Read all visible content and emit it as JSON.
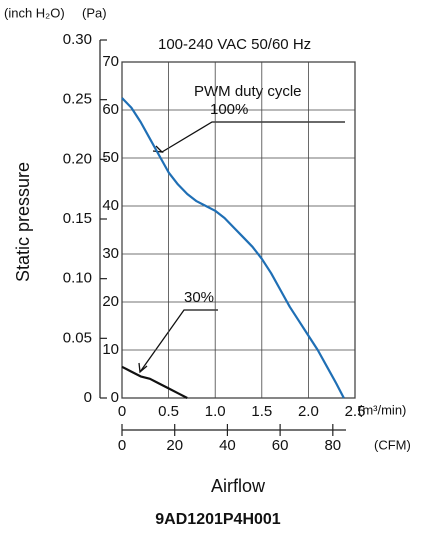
{
  "chart_data": {
    "type": "line",
    "title": "9AD1201P4H001",
    "subtitle": "100-240 VAC  50/60 Hz",
    "annotation": "PWM duty cycle",
    "x_label": "Airflow",
    "y_label": "Static pressure",
    "x_unit": "(m³/min)",
    "x2_unit": "(CFM)",
    "y_unit": "(Pa)",
    "y2_unit": "(inch H₂O)",
    "xlim": [
      0,
      2.5
    ],
    "xticks": [
      0,
      0.5,
      {
        "value": 1,
        "label": "1.0"
      },
      1.5,
      {
        "value": 2,
        "label": "2.0"
      },
      2.5
    ],
    "x2lim": [
      0,
      85
    ],
    "x2ticks": [
      0,
      20,
      40,
      60,
      80
    ],
    "ylim": [
      0,
      70
    ],
    "yticks": [
      0,
      10,
      20,
      30,
      40,
      50,
      60,
      70
    ],
    "y2lim": [
      0,
      0.3
    ],
    "y2ticks": [
      0,
      0.05,
      {
        "value": 0.1,
        "label": "0.10"
      },
      0.15,
      {
        "value": 0.2,
        "label": "0.20"
      },
      0.25,
      {
        "value": 0.3,
        "label": "0.30"
      }
    ],
    "grid": true,
    "series": [
      {
        "name": "100%",
        "color": "#1f6fb5",
        "x": [
          0,
          0.1,
          0.2,
          0.3,
          0.4,
          0.5,
          0.6,
          0.7,
          0.8,
          0.9,
          1.0,
          1.1,
          1.2,
          1.3,
          1.4,
          1.5,
          1.6,
          1.7,
          1.8,
          1.9,
          2.0,
          2.1,
          2.2,
          2.3,
          2.38
        ],
        "values": [
          62.5,
          60.5,
          57.5,
          54,
          50.5,
          47,
          44.5,
          42.5,
          41,
          40,
          39,
          37.5,
          35.5,
          33.5,
          31.5,
          29,
          26,
          22.5,
          19,
          16,
          13,
          10,
          6.5,
          3,
          0
        ]
      },
      {
        "name": "30%",
        "color": "#111111",
        "x": [
          0,
          0.1,
          0.2,
          0.3,
          0.4,
          0.5,
          0.6,
          0.7
        ],
        "values": [
          6.5,
          5.5,
          4.5,
          4,
          3,
          2,
          1,
          0
        ]
      }
    ]
  }
}
